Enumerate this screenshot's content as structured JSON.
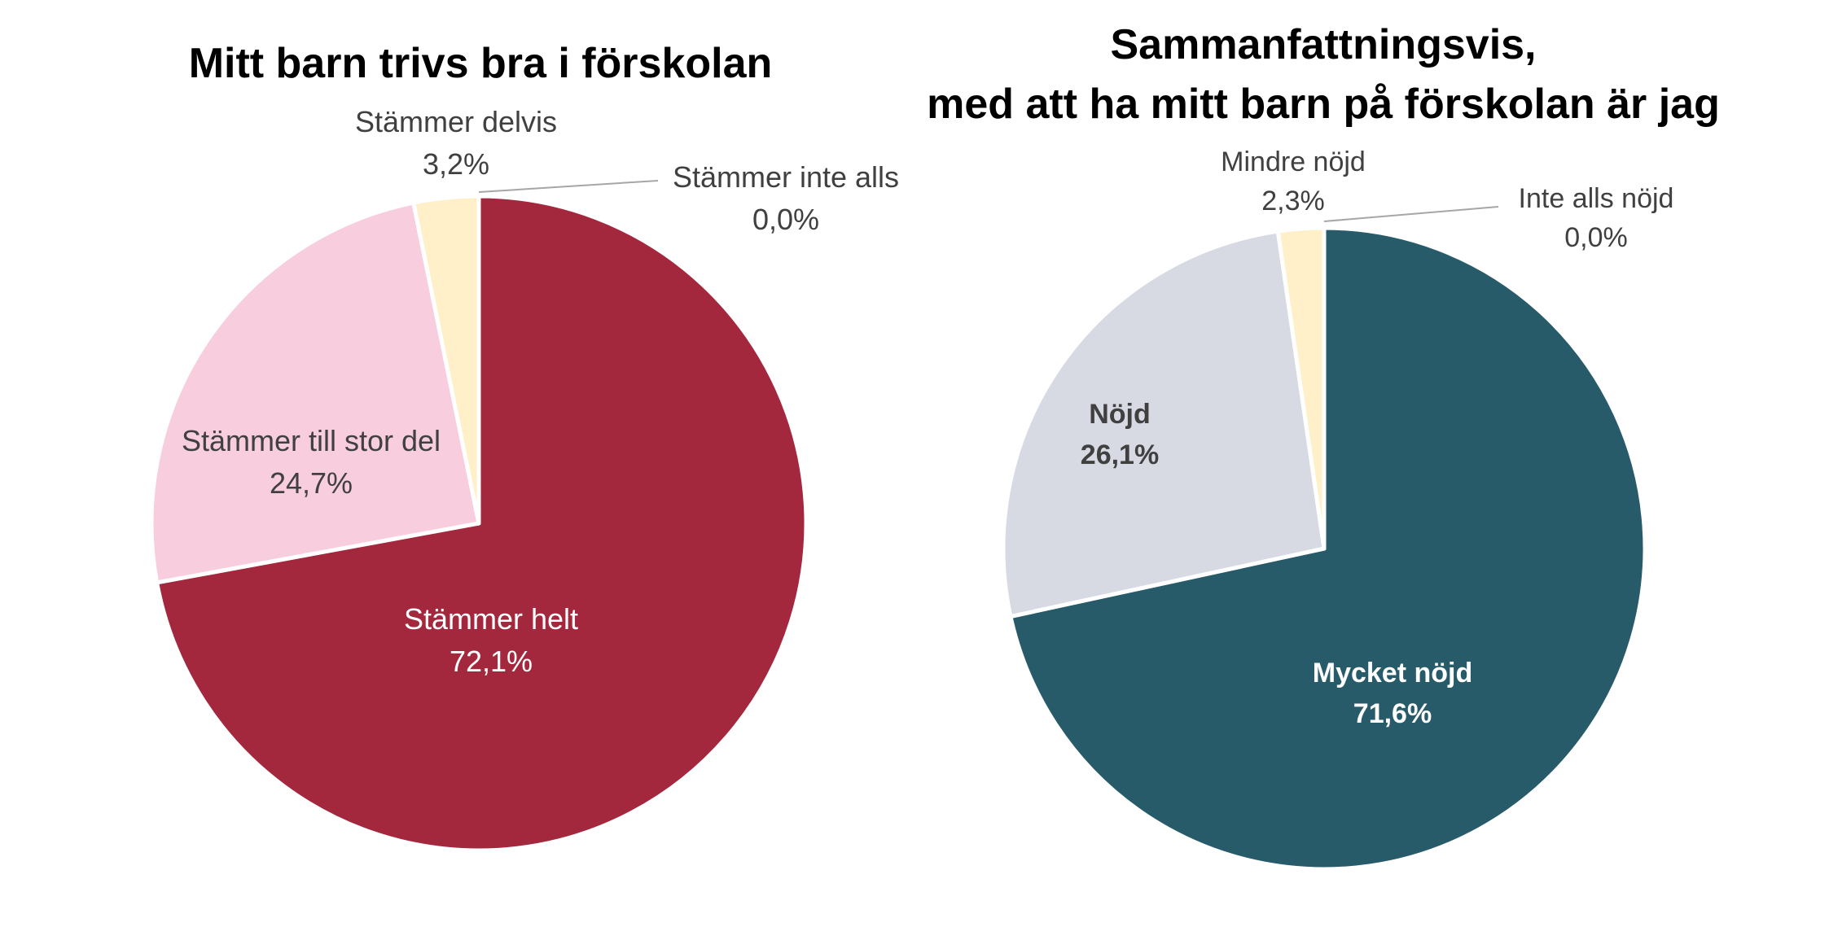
{
  "chart_data": [
    {
      "type": "pie",
      "title": "Mitt barn trivs bra i förskolan",
      "slices": [
        {
          "label": "Stämmer helt",
          "value": 72.1,
          "value_label": "72,1%",
          "color": "#A4283D"
        },
        {
          "label": "Stämmer till stor del",
          "value": 24.7,
          "value_label": "24,7%",
          "color": "#F8CDDE"
        },
        {
          "label": "Stämmer delvis",
          "value": 3.2,
          "value_label": "3,2%",
          "color": "#FFF0C9"
        },
        {
          "label": "Stämmer inte alls",
          "value": 0.0,
          "value_label": "0,0%",
          "color": "#A4283D"
        }
      ]
    },
    {
      "type": "pie",
      "title_lines": [
        "Sammanfattningsvis,",
        "med att ha mitt barn på förskolan är jag"
      ],
      "slices": [
        {
          "label": "Mycket nöjd",
          "value": 71.6,
          "value_label": "71,6%",
          "color": "#285B6A"
        },
        {
          "label": "Nöjd",
          "value": 26.1,
          "value_label": "26,1%",
          "color": "#D7D9E3"
        },
        {
          "label": "Mindre nöjd",
          "value": 2.3,
          "value_label": "2,3%",
          "color": "#FFF0C9"
        },
        {
          "label": "Inte alls nöjd",
          "value": 0.0,
          "value_label": "0,0%",
          "color": "#285B6A"
        }
      ]
    }
  ]
}
